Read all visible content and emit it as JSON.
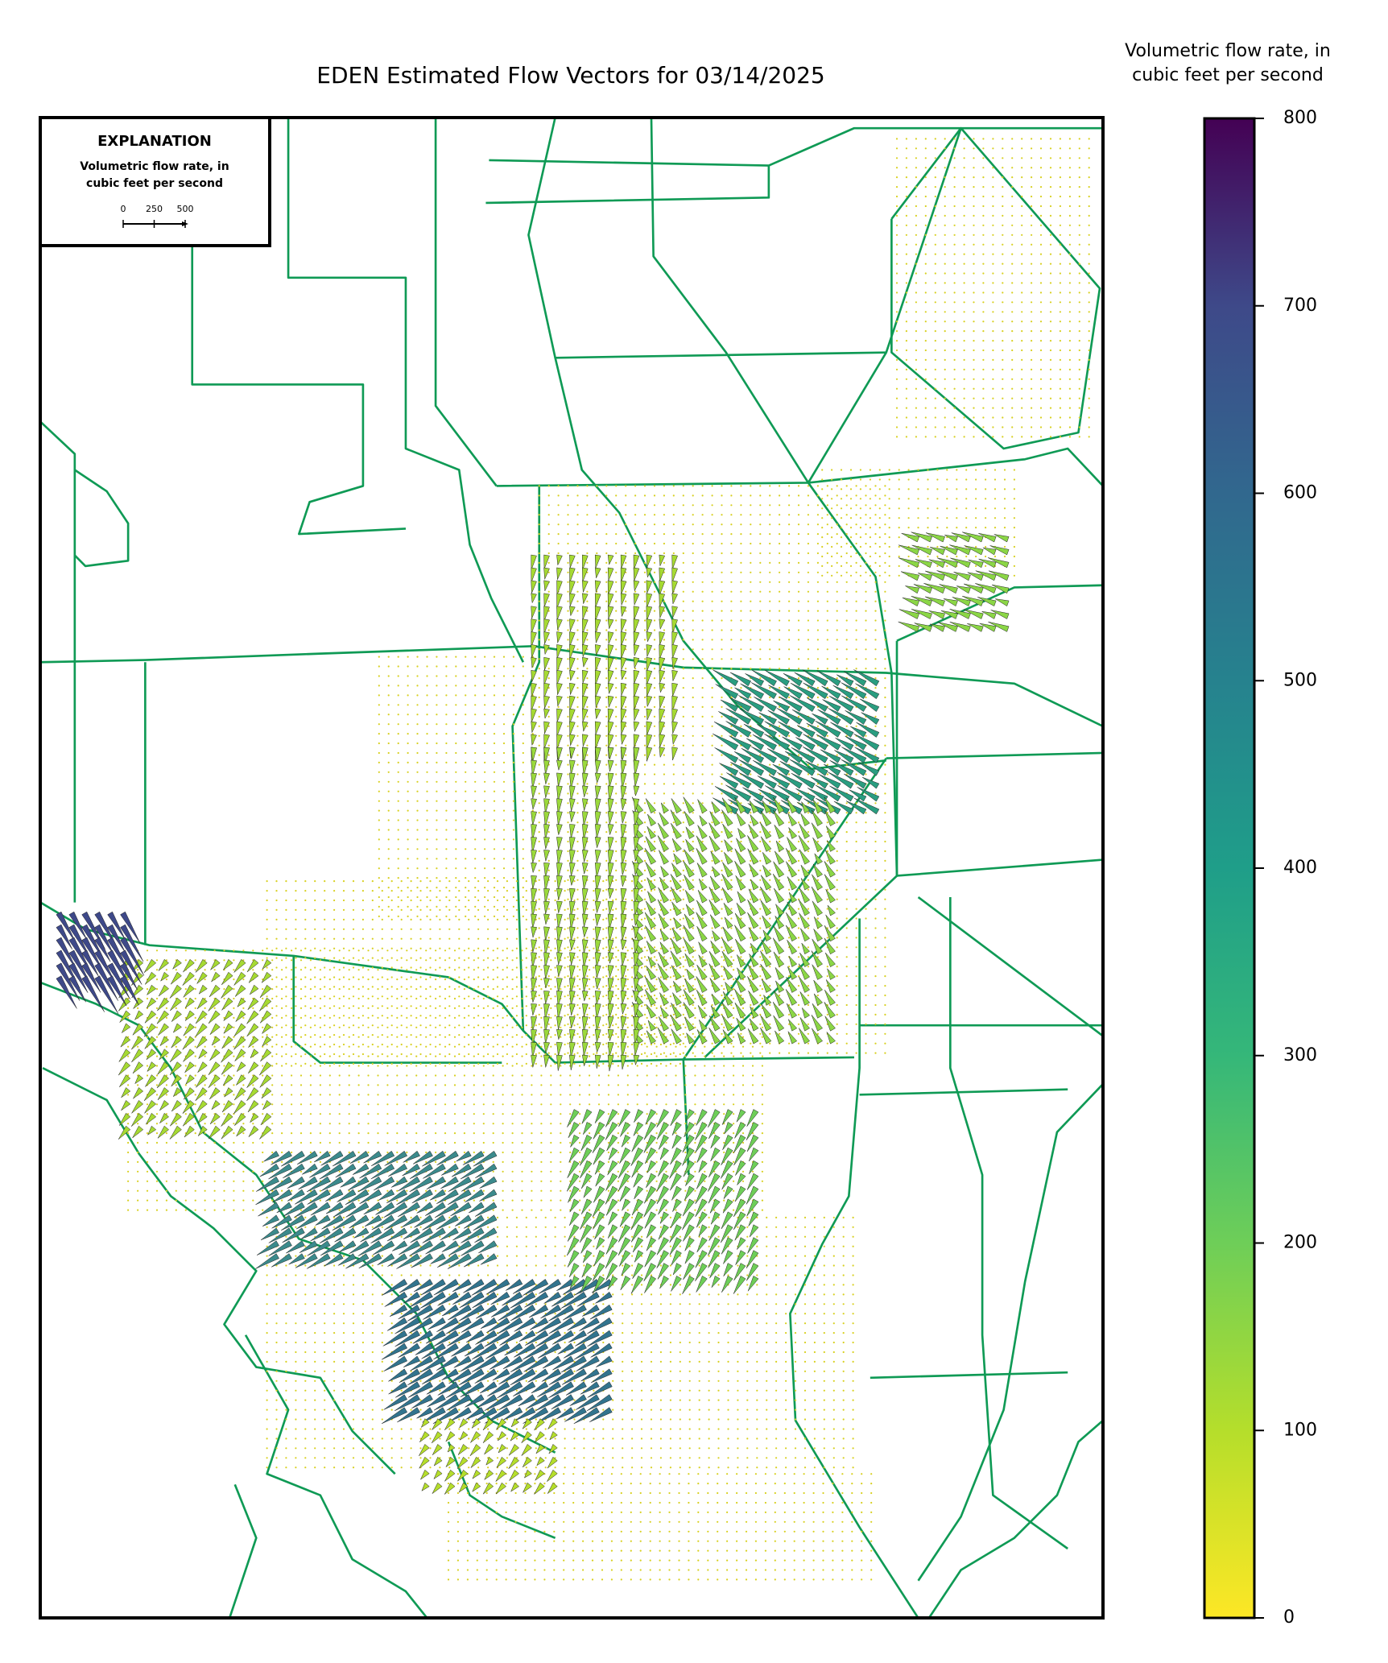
{
  "title": "EDEN Estimated Flow Vectors for 03/14/2025",
  "colorbar": {
    "label": [
      "Volumetric flow rate, in",
      "cubic feet per second"
    ],
    "ylim": [
      0,
      800
    ],
    "yticks": [
      0,
      100,
      200,
      300,
      400,
      500,
      600,
      700,
      800
    ]
  },
  "explanation": {
    "title": "EXPLANATION",
    "label": [
      "Volumetric flow rate, in",
      "cubic feet per second"
    ],
    "scale_ticks": [
      0,
      250,
      500
    ]
  }
}
